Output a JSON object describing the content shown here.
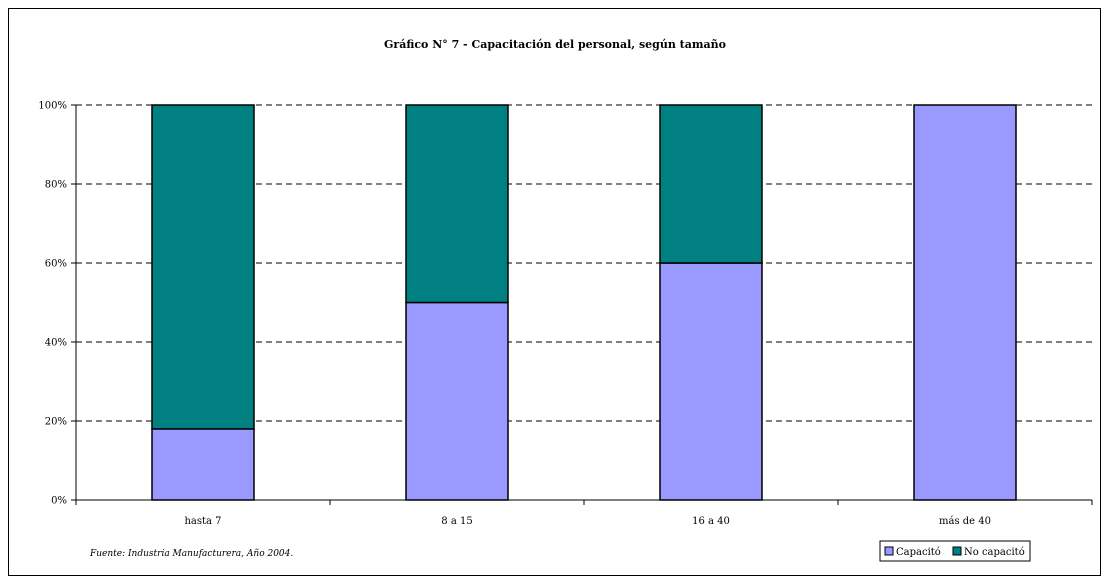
{
  "chart_data": {
    "type": "bar",
    "stacked": true,
    "percent_stacked": true,
    "title": "Gráfico N° 7 - Capacitación del personal, según tamaño",
    "xlabel": "",
    "ylabel": "",
    "categories": [
      "hasta 7",
      "8 a 15",
      "16 a 40",
      "más de 40"
    ],
    "series": [
      {
        "name": "Capacitó",
        "values": [
          18,
          50,
          60,
          100
        ],
        "color": "#9999FF"
      },
      {
        "name": "No capacitó",
        "values": [
          82,
          50,
          40,
          0
        ],
        "color": "#008080"
      }
    ],
    "ylim": [
      0,
      100
    ],
    "yticks": [
      "0%",
      "20%",
      "40%",
      "60%",
      "80%",
      "100%"
    ],
    "grid": true,
    "legend": "bottom-right"
  },
  "source_note": "Fuente: Industria Manufacturera, Año 2004."
}
